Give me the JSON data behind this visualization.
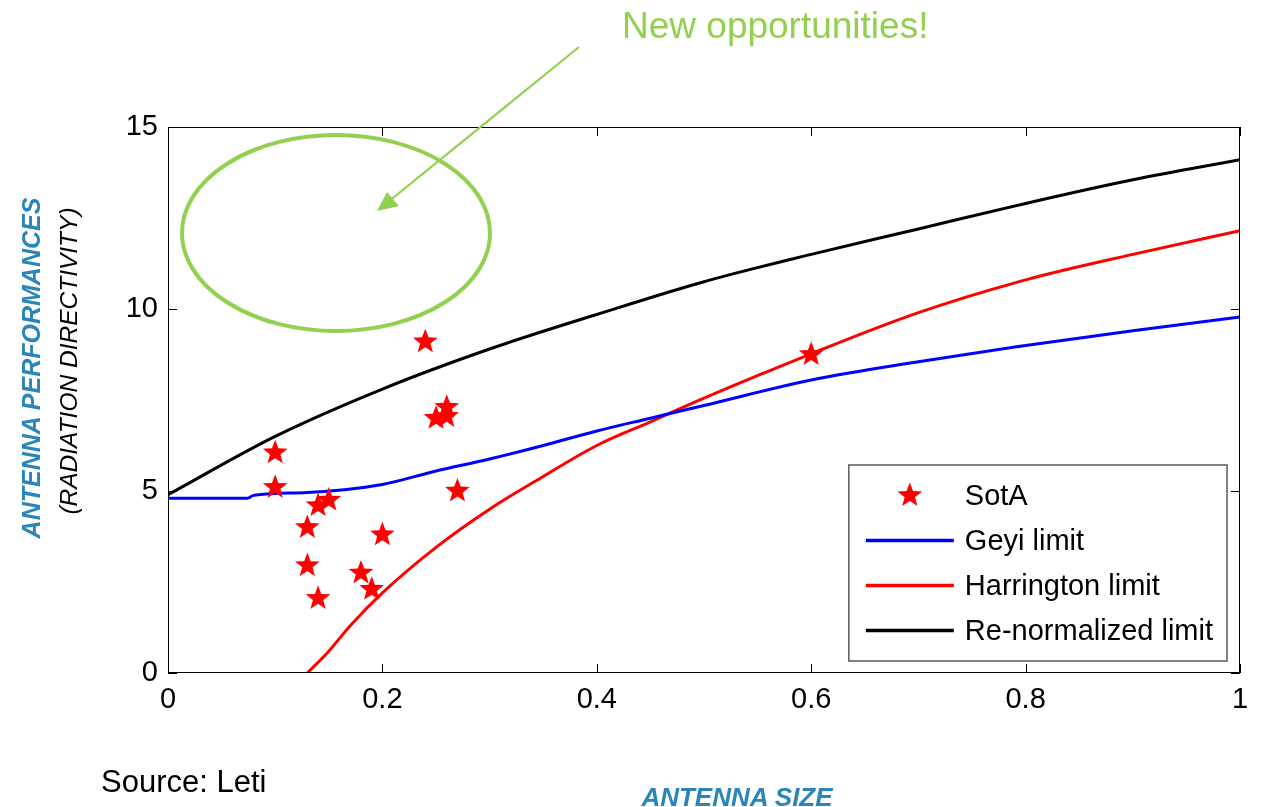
{
  "chart_data": {
    "type": "line",
    "xlabel": "ANTENNA SIZE",
    "ylabel": "ANTENNA PERFORMANCES\n(RADIATION DIRECTIVITY)",
    "annotations": [
      "New opportunities!",
      "Source: Leti"
    ],
    "xlim": [
      0,
      1
    ],
    "xticks": [
      0,
      0.2,
      0.4,
      0.6,
      0.8,
      1
    ],
    "ylim": [
      0,
      15
    ],
    "yticks": [
      0,
      5,
      10,
      15
    ],
    "legend": "bottom right",
    "series": [
      {
        "name": "SotA",
        "type": "scatter",
        "marker": "star",
        "color": "#ff0000",
        "x": [
          0.1,
          0.1,
          0.13,
          0.13,
          0.14,
          0.14,
          0.15,
          0.18,
          0.19,
          0.2,
          0.24,
          0.25,
          0.26,
          0.26,
          0.27,
          0.6
        ],
        "values": [
          6.05,
          5.1,
          4.0,
          2.95,
          2.05,
          4.6,
          4.75,
          2.75,
          2.3,
          3.8,
          9.1,
          7.0,
          7.3,
          7.05,
          5.0,
          8.75
        ]
      },
      {
        "name": "Geyi limit",
        "color": "#0000ff",
        "x": [
          0,
          0.074,
          0.08,
          0.13,
          0.2,
          0.25,
          0.3,
          0.35,
          0.4,
          0.45,
          0.5,
          0.6,
          0.7,
          0.8,
          0.9,
          1
        ],
        "values": [
          4.8,
          4.8,
          4.88,
          4.96,
          5.18,
          5.55,
          5.88,
          6.25,
          6.65,
          7.0,
          7.35,
          8.05,
          8.55,
          9.0,
          9.4,
          9.78
        ]
      },
      {
        "name": "Harrington limit",
        "color": "#ff0000",
        "x": [
          0.13,
          0.15,
          0.17,
          0.2,
          0.25,
          0.3,
          0.35,
          0.4,
          0.45,
          0.5,
          0.6,
          0.7,
          0.8,
          0.9,
          1
        ],
        "values": [
          0,
          0.6,
          1.3,
          2.2,
          3.45,
          4.5,
          5.4,
          6.25,
          6.9,
          7.55,
          8.77,
          9.9,
          10.8,
          11.5,
          12.15
        ]
      },
      {
        "name": "Re-normalized limit",
        "color": "#000000",
        "x": [
          0,
          0.1,
          0.2,
          0.3,
          0.4,
          0.5,
          0.6,
          0.7,
          0.8,
          0.9,
          1
        ],
        "values": [
          4.9,
          6.5,
          7.8,
          8.9,
          9.85,
          10.75,
          11.5,
          12.2,
          12.9,
          13.55,
          14.1
        ]
      }
    ]
  }
}
